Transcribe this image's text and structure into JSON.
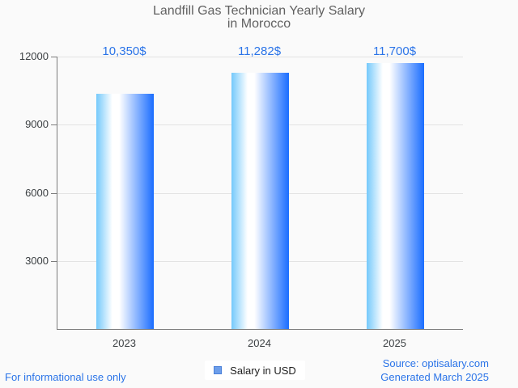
{
  "header": {
    "title_line1": "Landfill Gas Technician Yearly Salary",
    "title_line2": "in Morocco"
  },
  "legend": {
    "label": "Salary in USD"
  },
  "footer": {
    "left": "For informational use only",
    "source": "Source: optisalary.com",
    "generated": "Generated March 2025"
  },
  "colors": {
    "background": "#fafafa",
    "accent_blue": "#2b74e8",
    "title_text": "#616161",
    "tick_text": "#3c4043",
    "axis_line": "#7c7c7c",
    "gridline": "#e3e3e3",
    "legend_swatch_fill": "#6d9eea",
    "legend_swatch_border": "#4a80d9",
    "bar_gradient": [
      "#74c9fb",
      "#ffffff",
      "#1a6dff"
    ]
  },
  "chart_data": {
    "type": "bar",
    "title": "Landfill Gas Technician Yearly Salary in Morocco",
    "categories": [
      "2023",
      "2024",
      "2025"
    ],
    "values": [
      10350,
      11282,
      11700
    ],
    "value_labels": [
      "10,350$",
      "11,282$",
      "11,700$"
    ],
    "series_name": "Salary in USD",
    "xlabel": "",
    "ylabel": "",
    "ylim": [
      0,
      12000
    ],
    "yticks": [
      12000,
      9000,
      6000,
      3000
    ],
    "ytick_labels": [
      "12000",
      "9000",
      "6000",
      "3000"
    ],
    "grid": true,
    "legend_position": "bottom"
  }
}
